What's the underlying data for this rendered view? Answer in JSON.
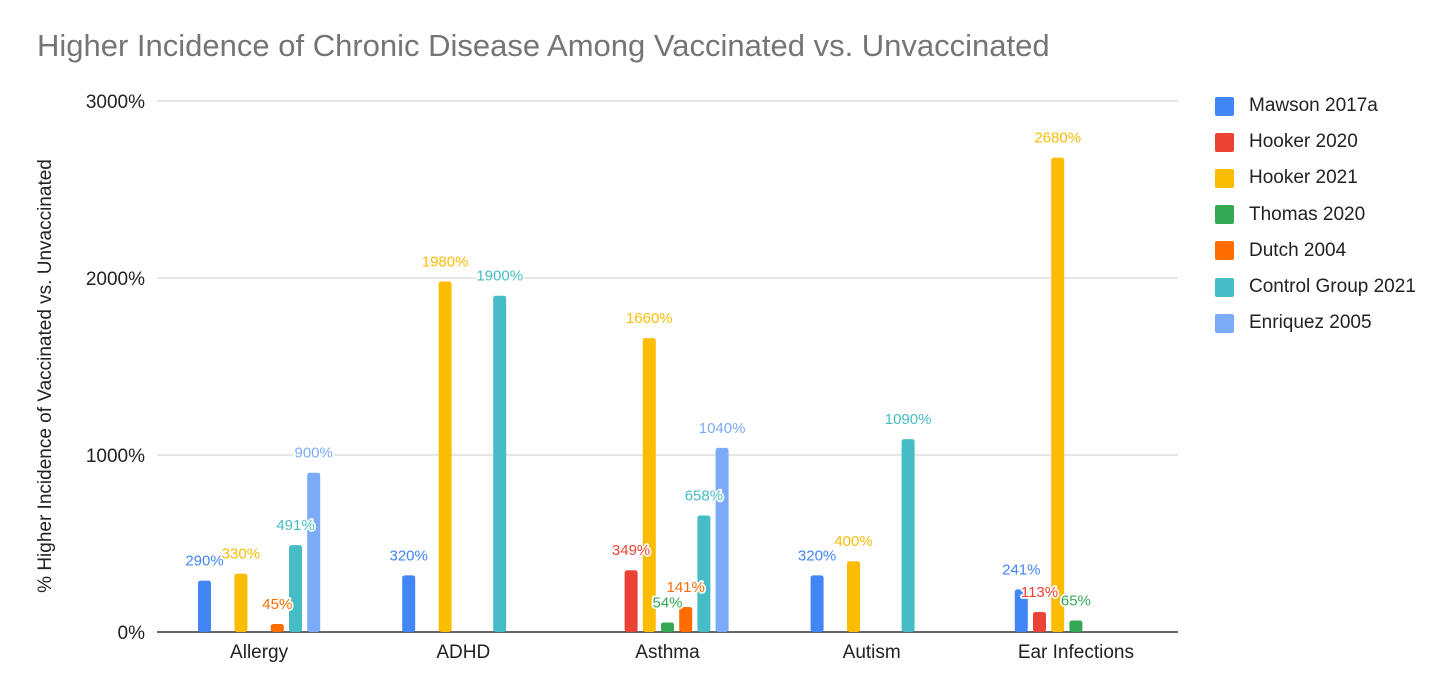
{
  "chart_data": {
    "type": "bar",
    "title": "Higher Incidence of Chronic Disease Among Vaccinated vs. Unvaccinated",
    "xlabel": "",
    "ylabel": "% Higher Incidence of Vaccinated vs. Unvaccinated",
    "ylim": [
      0,
      3000
    ],
    "yticks": [
      0,
      1000,
      2000,
      3000
    ],
    "ytick_labels": [
      "0%",
      "1000%",
      "2000%",
      "3000%"
    ],
    "grid": true,
    "legend_position": "right",
    "categories": [
      "Allergy",
      "ADHD",
      "Asthma",
      "Autism",
      "Ear Infections"
    ],
    "series": [
      {
        "name": "Mawson 2017a",
        "color": "#4285f4",
        "values": [
          290,
          320,
          null,
          320,
          241
        ],
        "labels": [
          "290%",
          "320%",
          null,
          "320%",
          "241%"
        ]
      },
      {
        "name": "Hooker 2020",
        "color": "#ea4335",
        "values": [
          null,
          null,
          349,
          null,
          113
        ],
        "labels": [
          null,
          null,
          "349%",
          null,
          "113%"
        ]
      },
      {
        "name": "Hooker 2021",
        "color": "#fbbc04",
        "values": [
          330,
          1980,
          1660,
          400,
          2680
        ],
        "labels": [
          "330%",
          "1980%",
          "1660%",
          "400%",
          "2680%"
        ]
      },
      {
        "name": "Thomas 2020",
        "color": "#34a853",
        "values": [
          null,
          null,
          54,
          null,
          65
        ],
        "labels": [
          null,
          null,
          "54%",
          null,
          "65%"
        ]
      },
      {
        "name": "Dutch 2004",
        "color": "#ff6d01",
        "values": [
          45,
          null,
          141,
          null,
          null
        ],
        "labels": [
          "45%",
          null,
          "141%",
          null,
          null
        ]
      },
      {
        "name": "Control Group 2021",
        "color": "#46bdc6",
        "values": [
          491,
          1900,
          658,
          1090,
          null
        ],
        "labels": [
          "491%",
          "1900%",
          "658%",
          "1090%",
          null
        ]
      },
      {
        "name": "Enriquez 2005",
        "color": "#7baaf7",
        "values": [
          900,
          null,
          1040,
          null,
          null
        ],
        "labels": [
          "900%",
          null,
          "1040%",
          null,
          null
        ]
      }
    ]
  }
}
